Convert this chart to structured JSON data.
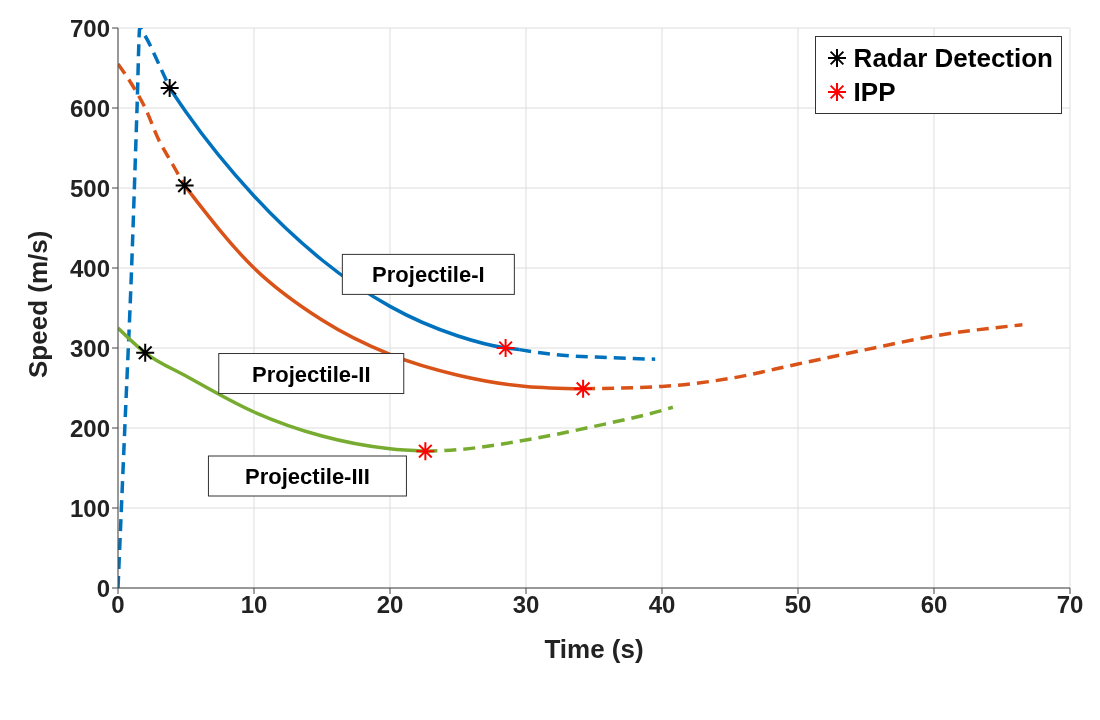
{
  "chart_data": {
    "type": "line",
    "xlabel": "Time (s)",
    "ylabel": "Speed (m/s)",
    "xlim": [
      0,
      70
    ],
    "xticks": [
      0,
      10,
      20,
      30,
      40,
      50,
      60,
      70
    ],
    "ylim": [
      0,
      700
    ],
    "yticks": [
      0,
      100,
      200,
      300,
      400,
      500,
      600,
      700
    ],
    "grid": true,
    "legend": "top right",
    "series": [
      {
        "color": "#0072bd",
        "line_style": "dashed",
        "x": [
          0,
          0.5,
          1,
          1.4,
          1.6,
          2,
          3,
          3.8
        ],
        "values": [
          0,
          200,
          400,
          600,
          700,
          690,
          655,
          625
        ]
      },
      {
        "color": "#0072bd",
        "line_style": "solid",
        "x": [
          3.8,
          5,
          10,
          15,
          20,
          25,
          28.5,
          29.5
        ],
        "values": [
          625,
          595,
          490,
          410,
          352,
          315,
          300,
          298
        ]
      },
      {
        "color": "#0072bd",
        "line_style": "dashed",
        "x": [
          29.5,
          32,
          36,
          39.5
        ],
        "values": [
          298,
          292,
          288,
          286
        ]
      },
      {
        "color": "#d95319",
        "line_style": "dashed",
        "x": [
          0,
          1,
          2,
          3,
          4,
          4.9
        ],
        "values": [
          655,
          630,
          600,
          560,
          530,
          503
        ]
      },
      {
        "color": "#d95319",
        "line_style": "solid",
        "x": [
          4.9,
          10,
          15,
          20,
          25,
          30,
          34.2
        ],
        "values": [
          503,
          400,
          335,
          292,
          266,
          252,
          249
        ]
      },
      {
        "color": "#d95319",
        "line_style": "dashed",
        "x": [
          34.2,
          40,
          45,
          50,
          55,
          60,
          66.5
        ],
        "values": [
          249,
          252,
          262,
          280,
          298,
          315,
          329
        ]
      },
      {
        "color": "#77ac30",
        "line_style": "solid",
        "x": [
          0,
          2,
          5,
          10,
          15,
          20,
          22.6
        ],
        "values": [
          325,
          294,
          265,
          220,
          190,
          174,
          171
        ]
      },
      {
        "color": "#77ac30",
        "line_style": "dashed",
        "x": [
          22.6,
          25,
          30,
          35,
          40,
          40.8
        ],
        "values": [
          171,
          173,
          185,
          202,
          222,
          226
        ]
      },
      {
        "type": "scatter",
        "name": "Radar Detection",
        "color": "#000000",
        "marker": "cross",
        "x": [
          3.8,
          4.9,
          2
        ],
        "values": [
          625,
          503,
          294
        ]
      },
      {
        "type": "scatter",
        "name": "IPP",
        "color": "#ff0000",
        "marker": "cross",
        "x": [
          28.5,
          34.2,
          22.6
        ],
        "values": [
          300,
          249,
          171
        ]
      }
    ],
    "annotations": [
      "Projectile-I",
      "Projectile-II",
      "Projectile-III"
    ]
  }
}
